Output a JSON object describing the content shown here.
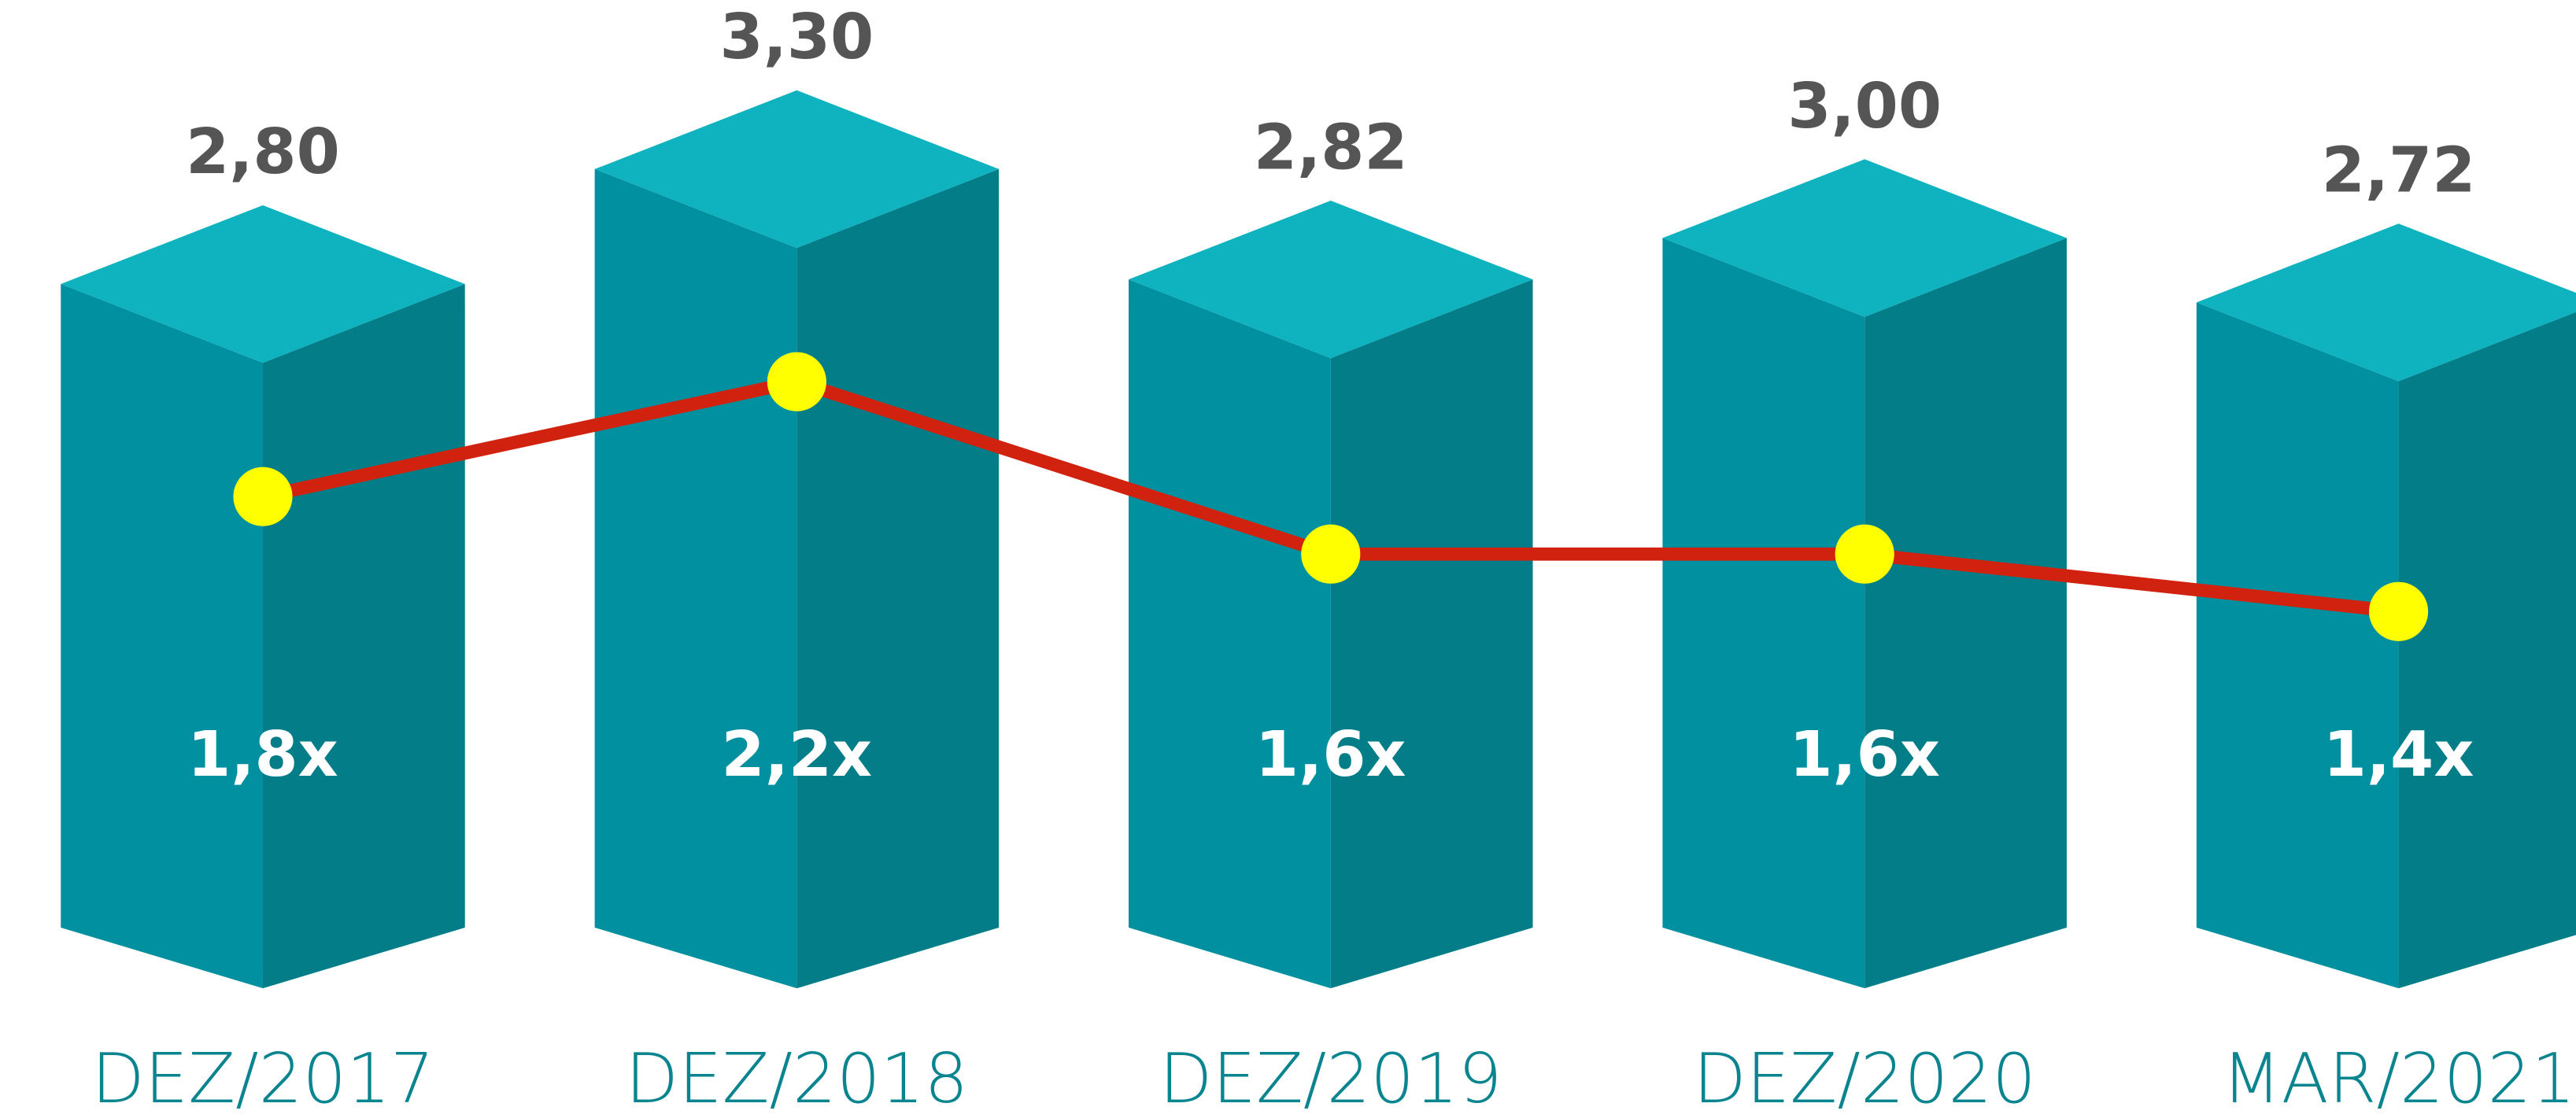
{
  "chart_data": {
    "type": "bar",
    "categories": [
      "DEZ/2017",
      "DEZ/2018",
      "DEZ/2019",
      "DEZ/2020",
      "MAR/2021"
    ],
    "bars": {
      "values": [
        2.8,
        3.3,
        2.82,
        3.0,
        2.72
      ],
      "value_labels": [
        "2,80",
        "3,30",
        "2,82",
        "3,00",
        "2,72"
      ],
      "colors": {
        "top": "#0fb3c0",
        "left": "#0090a0",
        "right": "#037d88"
      }
    },
    "line": {
      "axis": "y2",
      "values": [
        1.8,
        2.2,
        1.6,
        1.6,
        1.4
      ],
      "value_labels": [
        "1,8x",
        "2,2x",
        "1,6x",
        "1,6x",
        "1,4x"
      ],
      "color": "#d0220f",
      "marker_color": "#ffff00"
    },
    "ylim": [
      0,
      4
    ],
    "y2lim": [
      0.3,
      3.5
    ]
  }
}
